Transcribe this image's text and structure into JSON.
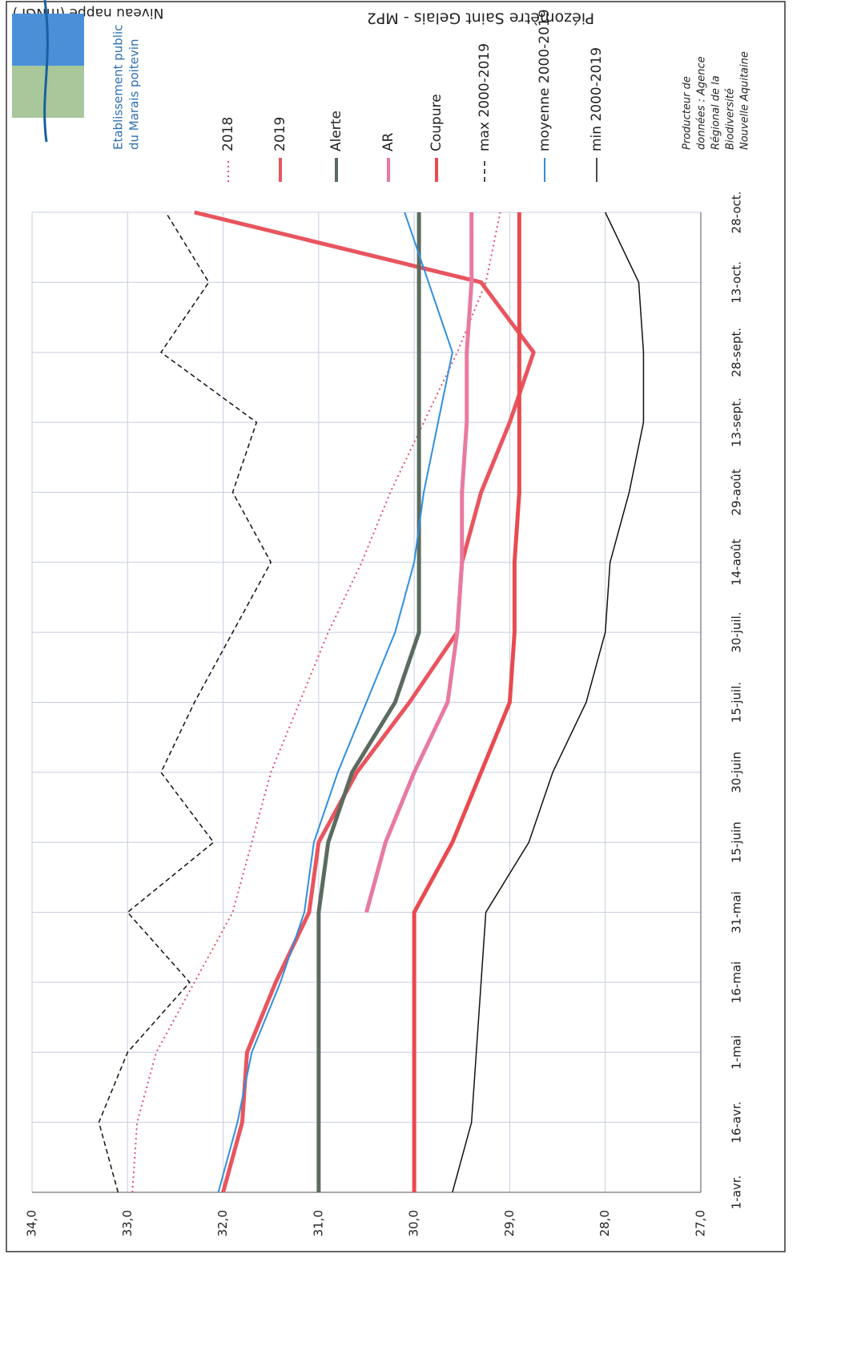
{
  "chart_data": {
    "type": "line",
    "title": "Piézomètre Saint Gelais - MP2",
    "y_label": "Niveau nappe (mNGF)",
    "categories": [
      "1-avr.",
      "16-avr.",
      "1-mai",
      "16-mai",
      "31-mai",
      "15-juin",
      "30-juin",
      "15-juil.",
      "30-juil.",
      "14-août",
      "29-août",
      "13-sept.",
      "28-sept.",
      "13-oct.",
      "28-oct."
    ],
    "ylim": [
      27,
      34
    ],
    "yticks": [
      {
        "value": 27,
        "label": "27,0"
      },
      {
        "value": 28,
        "label": "28,0"
      },
      {
        "value": 29,
        "label": "29,0"
      },
      {
        "value": 30,
        "label": "30,0"
      },
      {
        "value": 31,
        "label": "31,0"
      },
      {
        "value": 32,
        "label": "32,0"
      },
      {
        "value": 33,
        "label": "33,0"
      },
      {
        "value": 34,
        "label": "34,0"
      }
    ],
    "grid": true,
    "series": [
      {
        "name": "2018",
        "color": "#e0506e",
        "dash": "dotted",
        "width": 2,
        "values": [
          32.95,
          32.9,
          32.7,
          32.3,
          31.9,
          31.7,
          31.5,
          31.2,
          30.9,
          30.55,
          30.25,
          29.9,
          29.55,
          29.25,
          29.1
        ]
      },
      {
        "name": "2019",
        "color": "#e8555f",
        "dash": "solid",
        "width": 5,
        "values": [
          32.0,
          31.8,
          31.75,
          31.45,
          31.1,
          31.0,
          30.6,
          30.05,
          29.55,
          29.5,
          29.3,
          29.0,
          28.75,
          29.3,
          32.3
        ]
      },
      {
        "name": "Alerte",
        "color": "#5b6b5f",
        "dash": "solid",
        "width": 5,
        "values": [
          31.0,
          31.0,
          31.0,
          31.0,
          31.0,
          30.9,
          30.65,
          30.2,
          29.95,
          29.95,
          29.95,
          29.95,
          29.95,
          29.95,
          29.95
        ]
      },
      {
        "name": "AR",
        "color": "#e87aa0",
        "dash": "solid",
        "width": 5,
        "values": [
          null,
          null,
          null,
          null,
          30.5,
          30.3,
          30.0,
          29.65,
          29.55,
          29.5,
          29.5,
          29.45,
          29.45,
          29.4,
          29.4
        ]
      },
      {
        "name": "Coupure",
        "color": "#e84a50",
        "dash": "solid",
        "width": 5,
        "values": [
          30.0,
          30.0,
          30.0,
          30.0,
          30.0,
          29.6,
          29.3,
          29.0,
          28.95,
          28.95,
          28.9,
          28.9,
          28.9,
          28.9,
          28.9
        ]
      },
      {
        "name": "max 2000-2019",
        "color": "#111111",
        "dash": "dashed",
        "width": 1.5,
        "values": [
          33.1,
          33.3,
          33.0,
          32.35,
          33.0,
          32.1,
          32.65,
          32.3,
          31.9,
          31.5,
          31.9,
          31.65,
          32.65,
          32.15,
          32.6
        ]
      },
      {
        "name": "moyenne 2000-2019",
        "color": "#2f8fe0",
        "dash": "solid",
        "width": 2,
        "values": [
          32.05,
          31.85,
          31.7,
          31.4,
          31.15,
          31.05,
          30.8,
          30.5,
          30.2,
          30.0,
          29.9,
          29.75,
          29.6,
          29.85,
          30.1
        ]
      },
      {
        "name": "min 2000-2019",
        "color": "#111111",
        "dash": "solid",
        "width": 1.5,
        "values": [
          29.6,
          29.4,
          29.35,
          29.3,
          29.25,
          28.8,
          28.55,
          28.2,
          28.0,
          27.95,
          27.75,
          27.6,
          27.6,
          27.65,
          28.0
        ]
      }
    ],
    "logo_text": [
      "Etablissement public",
      "du Marais poitevin"
    ],
    "producer_note": [
      "Producteur de",
      "données : Agence",
      "Régional de la",
      "Biodiversité",
      "Nouvelle Aquitaine"
    ]
  }
}
